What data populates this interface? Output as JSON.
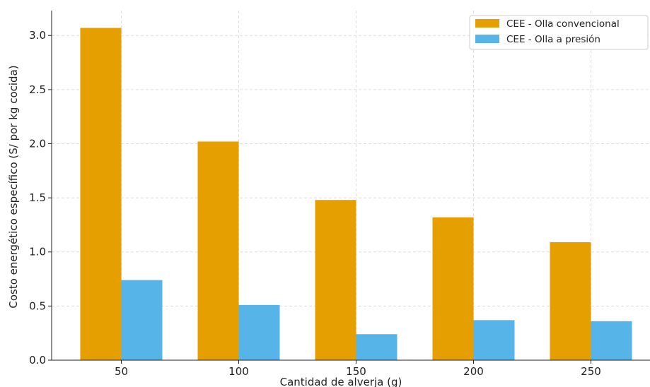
{
  "chart_data": {
    "type": "bar",
    "title": "",
    "xlabel": "Cantidad de alverja (g)",
    "ylabel": "Costo energético específico (S/ por kg cocida)",
    "categories": [
      "50",
      "100",
      "150",
      "200",
      "250"
    ],
    "series": [
      {
        "name": "CEE - Olla convencional",
        "color": "#E69F00",
        "values": [
          3.07,
          2.02,
          1.48,
          1.32,
          1.09
        ]
      },
      {
        "name": "CEE - Olla a presión",
        "color": "#56B4E9",
        "values": [
          0.74,
          0.51,
          0.24,
          0.37,
          0.36
        ]
      }
    ],
    "ylim": [
      0,
      3.23
    ],
    "yticks": [
      "0.0",
      "0.5",
      "1.0",
      "1.5",
      "2.0",
      "2.5",
      "3.0"
    ],
    "grid": true,
    "legend_position": "top-right"
  }
}
